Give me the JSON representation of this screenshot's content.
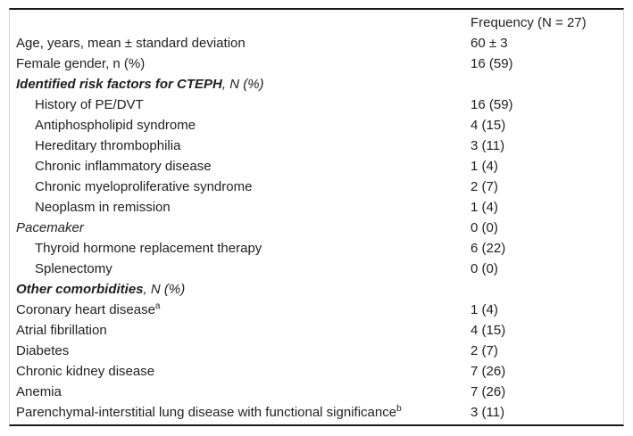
{
  "table": {
    "header": {
      "frequency_label": "Frequency (N = 27)"
    },
    "rows": [
      {
        "label": "Age, years, mean ± standard deviation",
        "value": "60 ± 3",
        "style": "plain",
        "indent": 0
      },
      {
        "label": "Female gender, n (%)",
        "value": "16 (59)",
        "style": "plain",
        "indent": 0
      },
      {
        "label": "Identified risk factors for CTEPH",
        "suffix": ", N (%)",
        "value": "",
        "style": "section",
        "indent": 0
      },
      {
        "label": "History of PE/DVT",
        "value": "16 (59)",
        "style": "plain",
        "indent": 1
      },
      {
        "label": "Antiphospholipid syndrome",
        "value": "4 (15)",
        "style": "plain",
        "indent": 1
      },
      {
        "label": "Hereditary thrombophilia",
        "value": "3 (11)",
        "style": "plain",
        "indent": 1
      },
      {
        "label": "Chronic inflammatory disease",
        "value": "1 (4)",
        "style": "plain",
        "indent": 1
      },
      {
        "label": "Chronic myeloproliferative syndrome",
        "value": "2 (7)",
        "style": "plain",
        "indent": 1
      },
      {
        "label": "Neoplasm in remission",
        "value": "1 (4)",
        "style": "plain",
        "indent": 1
      },
      {
        "label": "Pacemaker",
        "value": "0 (0)",
        "style": "italic",
        "indent": 0
      },
      {
        "label": "Thyroid hormone replacement therapy",
        "value": "6 (22)",
        "style": "plain",
        "indent": 1
      },
      {
        "label": "Splenectomy",
        "value": "0 (0)",
        "style": "plain",
        "indent": 1
      },
      {
        "label": "Other comorbidities",
        "suffix": ", N (%)",
        "value": "",
        "style": "section",
        "indent": 0
      },
      {
        "label": "Coronary heart disease",
        "sup": "a",
        "value": "1 (4)",
        "style": "plain",
        "indent": 0
      },
      {
        "label": "Atrial fibrillation",
        "value": "4 (15)",
        "style": "plain",
        "indent": 0
      },
      {
        "label": "Diabetes",
        "value": "2 (7)",
        "style": "plain",
        "indent": 0
      },
      {
        "label": "Chronic kidney disease",
        "value": "7 (26)",
        "style": "plain",
        "indent": 0
      },
      {
        "label": "Anemia",
        "value": "7 (26)",
        "style": "plain",
        "indent": 0
      },
      {
        "label": "Parenchymal-interstitial lung disease with functional significance",
        "sup": "b",
        "value": "3 (11)",
        "style": "plain",
        "indent": 0
      }
    ],
    "colors": {
      "rule": "#1a1a1a",
      "frame_edge": "#d6d6d6",
      "text": "#1f1f1f",
      "background": "#ffffff"
    }
  }
}
